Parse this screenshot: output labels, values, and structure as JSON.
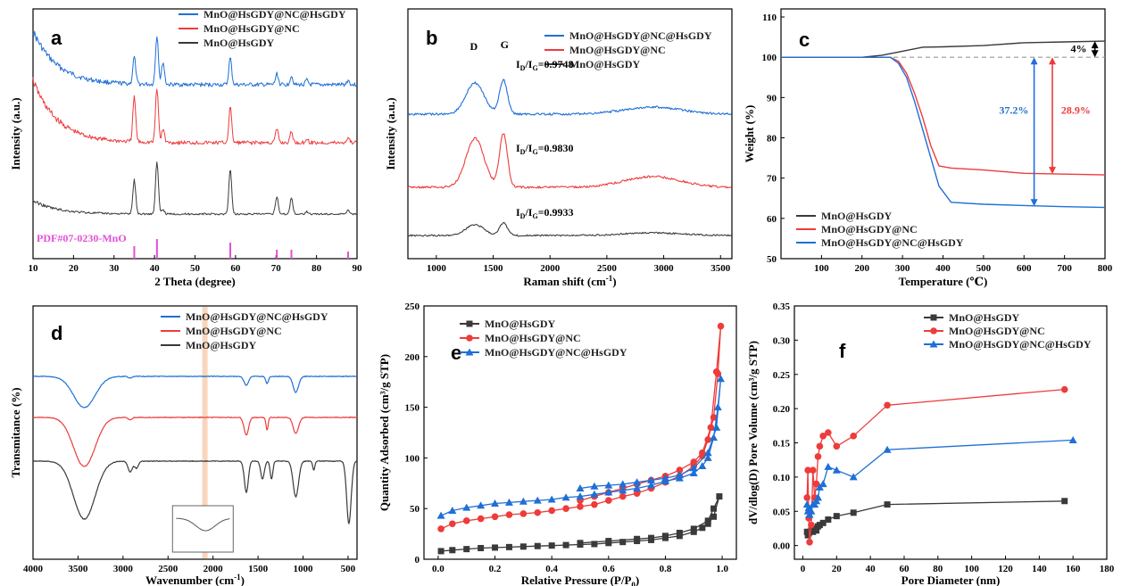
{
  "colors": {
    "blue": "#1f6fd6",
    "red": "#ee3b3b",
    "black": "#3a3a3a",
    "magenta": "#e24fd8",
    "peach": "#f6c59e",
    "grey": "#999999"
  },
  "panels": [
    {
      "id": "a",
      "type": "xrd",
      "letter": "a",
      "xlabel": "2 Theta (degree)",
      "ylabel": "Intensity (a.u.)",
      "xlim": [
        10,
        90
      ],
      "xticks": [
        "10",
        "20",
        "30",
        "40",
        "50",
        "60",
        "70",
        "80",
        "90"
      ],
      "legend": [
        "MnO@HsGDY@NC@HsGDY",
        "MnO@HsGDY@NC",
        "MnO@HsGDY"
      ],
      "reference_label": "PDF#07-0230-MnO",
      "reference_peaks": [
        35,
        40.6,
        58.7,
        70.2,
        73.8,
        87.8
      ],
      "peak_positions": [
        35,
        40.6,
        42.1,
        58.7,
        70.2,
        73.8,
        77.6,
        87.8
      ]
    },
    {
      "id": "b",
      "type": "raman",
      "letter": "b",
      "xlabel": "Raman shift (cm",
      "xlabel_sup": "-1",
      "xlabel_end": ")",
      "ylabel": "Intensity (a.u.)",
      "xlim": [
        750,
        3600
      ],
      "xticks": [
        "1000",
        "1500",
        "2000",
        "2500",
        "3000",
        "3500"
      ],
      "legend": [
        "MnO@HsGDY@NC@HsGDY",
        "MnO@HsGDY@NC",
        "MnO@HsGDY"
      ],
      "band_labels": [
        "D",
        "G"
      ],
      "ratios": [
        {
          "text": "=0.9748"
        },
        {
          "text": "=0.9830"
        },
        {
          "text": "=0.9933"
        }
      ],
      "ratio_prefix": "I",
      "ratio_sub1": "D",
      "ratio_mid": "/I",
      "ratio_sub2": "G"
    },
    {
      "id": "c",
      "type": "tga",
      "letter": "c",
      "xlabel": "Temperature (℃)",
      "ylabel": "Weight (%)",
      "xlim": [
        0,
        800
      ],
      "ylim": [
        50,
        112
      ],
      "xticks": [
        "100",
        "200",
        "300",
        "400",
        "500",
        "600",
        "700",
        "800"
      ],
      "yticks": [
        "50",
        "60",
        "70",
        "80",
        "90",
        "100",
        "110"
      ],
      "legend": [
        "MnO@HsGDY",
        "MnO@HsGDY@NC",
        "MnO@HsGDY@NC@HsGDY"
      ],
      "annotations": {
        "gain": "4%",
        "loss_blue": "37.2%",
        "loss_red": "28.9%"
      },
      "series": [
        {
          "name": "MnO@HsGDY",
          "color": "black",
          "x": [
            0,
            200,
            250,
            300,
            350,
            400,
            500,
            600,
            700,
            800
          ],
          "y": [
            100,
            100,
            100.5,
            101.5,
            102.5,
            102.6,
            102.9,
            103.6,
            103.8,
            104
          ]
        },
        {
          "name": "MnO@HsGDY@NC",
          "color": "red",
          "x": [
            0,
            270,
            290,
            310,
            330,
            350,
            370,
            390,
            420,
            500,
            600,
            700,
            800
          ],
          "y": [
            100,
            100,
            99,
            96,
            91,
            85,
            78,
            73,
            72.5,
            72,
            71.2,
            71,
            70.8
          ]
        },
        {
          "name": "MnO@HsGDY@NC@HsGDY",
          "color": "blue",
          "x": [
            0,
            270,
            290,
            310,
            330,
            350,
            370,
            390,
            420,
            500,
            600,
            700,
            800
          ],
          "y": [
            100,
            100,
            98.5,
            95,
            89,
            82,
            75,
            68,
            64,
            63.5,
            63.2,
            62.9,
            62.7
          ]
        }
      ]
    },
    {
      "id": "d",
      "type": "ftir",
      "letter": "d",
      "xlabel": "Wavenumber (cm",
      "xlabel_sup": "-1",
      "xlabel_end": ")",
      "ylabel": "Transmitance (%)",
      "xlim": [
        4000,
        400
      ],
      "xticks": [
        "4000",
        "3500",
        "3000",
        "2500",
        "2000",
        "1500",
        "1000",
        "500"
      ],
      "legend": [
        "MnO@HsGDY@NC@HsGDY",
        "MnO@HsGDY@NC",
        "MnO@HsGDY"
      ]
    },
    {
      "id": "e",
      "type": "bet",
      "letter": "e",
      "xlabel": "Relative Pressure (P/P",
      "xlabel_sub": "0",
      "xlabel_end": ")",
      "ylabel": "Quantity Adsorbed (cm³/g STP)",
      "xlim": [
        -0.05,
        1.05
      ],
      "ylim": [
        0,
        250
      ],
      "xticks": [
        "0.0",
        "0.2",
        "0.4",
        "0.6",
        "0.8",
        "1.0"
      ],
      "yticks": [
        "0",
        "50",
        "100",
        "150",
        "200",
        "250"
      ],
      "legend": [
        "MnO@HsGDY",
        "MnO@HsGDY@NC",
        "MnO@HsGDY@NC@HsGDY"
      ],
      "series": [
        {
          "name": "MnO@HsGDY",
          "color": "black",
          "marker": "square",
          "x": [
            0.01,
            0.05,
            0.1,
            0.15,
            0.2,
            0.25,
            0.3,
            0.35,
            0.4,
            0.45,
            0.5,
            0.55,
            0.6,
            0.65,
            0.7,
            0.75,
            0.8,
            0.85,
            0.9,
            0.93,
            0.95,
            0.97,
            0.99,
            0.97,
            0.95,
            0.9,
            0.85,
            0.8,
            0.75,
            0.7,
            0.6,
            0.5
          ],
          "y": [
            8,
            9,
            10,
            11,
            11.5,
            12,
            12.5,
            13,
            13.5,
            14,
            14.5,
            15,
            16,
            17,
            18,
            19,
            21,
            23,
            27,
            31,
            35,
            42,
            62,
            50,
            38,
            30,
            26,
            23,
            21,
            20,
            18,
            16
          ]
        },
        {
          "name": "MnO@HsGDY@NC",
          "color": "red",
          "marker": "circle",
          "x": [
            0.01,
            0.05,
            0.1,
            0.15,
            0.2,
            0.25,
            0.3,
            0.35,
            0.4,
            0.45,
            0.5,
            0.55,
            0.6,
            0.65,
            0.7,
            0.75,
            0.8,
            0.85,
            0.9,
            0.93,
            0.95,
            0.97,
            0.985,
            0.995,
            0.98,
            0.96,
            0.93,
            0.9,
            0.85,
            0.8,
            0.75,
            0.7,
            0.65,
            0.6,
            0.55,
            0.5
          ],
          "y": [
            30,
            35,
            38,
            40,
            42,
            44,
            45,
            46,
            48,
            50,
            52,
            54,
            58,
            62,
            65,
            70,
            76,
            82,
            92,
            102,
            118,
            140,
            183,
            230,
            185,
            130,
            105,
            96,
            88,
            82,
            78,
            74,
            70,
            66,
            62,
            58
          ]
        },
        {
          "name": "MnO@HsGDY@NC@HsGDY",
          "color": "blue",
          "marker": "triangle",
          "x": [
            0.01,
            0.05,
            0.1,
            0.15,
            0.2,
            0.25,
            0.3,
            0.35,
            0.4,
            0.45,
            0.5,
            0.55,
            0.6,
            0.65,
            0.7,
            0.75,
            0.8,
            0.85,
            0.9,
            0.93,
            0.95,
            0.97,
            0.985,
            0.995,
            0.98,
            0.95,
            0.9,
            0.85,
            0.8,
            0.75,
            0.7,
            0.65,
            0.6,
            0.55,
            0.5
          ],
          "y": [
            43,
            48,
            51,
            53,
            55,
            56,
            57,
            58,
            59,
            61,
            62,
            64,
            66,
            68,
            70,
            73,
            77,
            80,
            85,
            92,
            100,
            120,
            150,
            178,
            130,
            105,
            90,
            83,
            80,
            78,
            76,
            74,
            73,
            72,
            70
          ]
        }
      ]
    },
    {
      "id": "f",
      "type": "bjh",
      "letter": "f",
      "xlabel": "Pore Diameter (nm)",
      "ylabel": "dV/dlog(D) Pore Volume (cm³/g STP)",
      "xlim": [
        -5,
        180
      ],
      "ylim": [
        -0.02,
        0.35
      ],
      "xticks": [
        "0",
        "20",
        "40",
        "60",
        "80",
        "100",
        "120",
        "140",
        "160",
        "180"
      ],
      "yticks": [
        "0.00",
        "0.05",
        "0.10",
        "0.15",
        "0.20",
        "0.25",
        "0.30",
        "0.35"
      ],
      "legend": [
        "MnO@HsGDY",
        "MnO@HsGDY@NC",
        "MnO@HsGDY@NC@HsGDY"
      ],
      "series": [
        {
          "name": "MnO@HsGDY",
          "color": "black",
          "marker": "square",
          "x": [
            2.5,
            3,
            3.5,
            4,
            5,
            6,
            7,
            8,
            9,
            10,
            12,
            15,
            20,
            30,
            50,
            155
          ],
          "y": [
            0.02,
            0.015,
            0.018,
            0.02,
            0.022,
            0.02,
            0.025,
            0.022,
            0.028,
            0.03,
            0.033,
            0.038,
            0.043,
            0.048,
            0.06,
            0.065
          ]
        },
        {
          "name": "MnO@HsGDY@NC",
          "color": "red",
          "marker": "circle",
          "x": [
            2.5,
            3,
            3.5,
            4,
            5,
            6,
            7,
            8,
            9,
            10,
            12,
            15,
            20,
            30,
            50,
            155
          ],
          "y": [
            0.07,
            0.11,
            0.04,
            0.005,
            0.03,
            0.11,
            0.07,
            0.09,
            0.13,
            0.145,
            0.16,
            0.165,
            0.145,
            0.16,
            0.205,
            0.228
          ]
        },
        {
          "name": "MnO@HsGDY@NC@HsGDY",
          "color": "blue",
          "marker": "triangle",
          "x": [
            2.5,
            3,
            3.5,
            4,
            5,
            6,
            7,
            8,
            9,
            10,
            12,
            15,
            20,
            30,
            50,
            160
          ],
          "y": [
            0.06,
            0.05,
            0.055,
            0.045,
            0.05,
            0.06,
            0.06,
            0.065,
            0.07,
            0.085,
            0.09,
            0.115,
            0.11,
            0.1,
            0.14,
            0.154
          ]
        }
      ]
    }
  ]
}
